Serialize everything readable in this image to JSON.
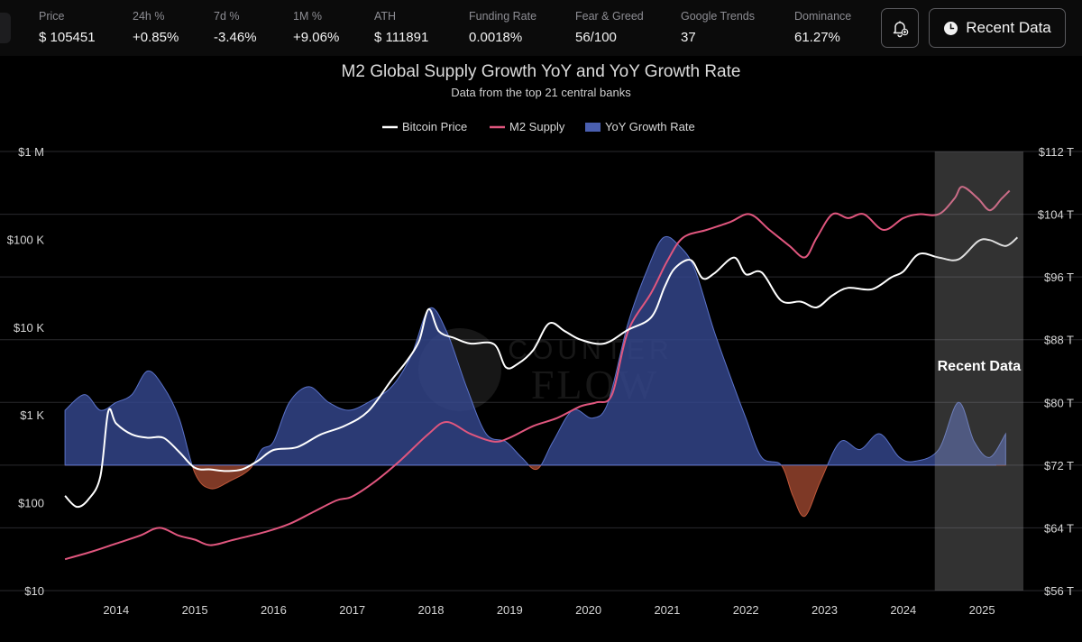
{
  "stats": [
    {
      "label": "Price",
      "value": "$ 105451"
    },
    {
      "label": "24h %",
      "value": "+0.85%"
    },
    {
      "label": "7d %",
      "value": "-3.46%"
    },
    {
      "label": "1M %",
      "value": "+9.06%"
    },
    {
      "label": "ATH",
      "value": "$ 111891"
    },
    {
      "label": "Funding Rate",
      "value": "0.0018%"
    },
    {
      "label": "Fear & Greed",
      "value": "56/100"
    },
    {
      "label": "Google Trends",
      "value": "37"
    },
    {
      "label": "Dominance",
      "value": "61.27%"
    }
  ],
  "toolbar": {
    "recent_label": "Recent Data",
    "bell_icon": "bell-plus-icon",
    "clock_icon": "clock-icon"
  },
  "chart_data": {
    "type": "line",
    "title": "M2 Global Supply Growth YoY and YoY Growth Rate",
    "subtitle": "Data from the top 21 central banks",
    "watermark": "COUNTER FLOW",
    "legend": [
      {
        "name": "Bitcoin Price",
        "color": "#ffffff"
      },
      {
        "name": "M2 Supply",
        "color": "#e0567e"
      },
      {
        "name": "YoY Growth Rate",
        "color": "#4a5fb0"
      }
    ],
    "left_ticks": [
      "$1 M",
      "$100 K",
      "$10 K",
      "$1 K",
      "$100",
      "$10"
    ],
    "right_ticks": [
      "$112 T",
      "$104 T",
      "$96 T",
      "$88 T",
      "$80 T",
      "$72 T",
      "$64 T",
      "$56 T"
    ],
    "x_ticks": [
      "2014",
      "2015",
      "2016",
      "2017",
      "2018",
      "2019",
      "2020",
      "2021",
      "2022",
      "2023",
      "2024",
      "2025"
    ],
    "left_scale": "log",
    "left_range": [
      10,
      1000000
    ],
    "right_range": [
      56,
      112
    ],
    "recent_region": {
      "label": "Recent Data",
      "from": 2024.4,
      "to": 2025.5
    },
    "series": [
      {
        "name": "Bitcoin Price",
        "axis": "left",
        "points": [
          [
            2013.35,
            120
          ],
          [
            2013.5,
            90
          ],
          [
            2013.65,
            110
          ],
          [
            2013.8,
            200
          ],
          [
            2013.9,
            1100
          ],
          [
            2014.0,
            800
          ],
          [
            2014.2,
            600
          ],
          [
            2014.4,
            550
          ],
          [
            2014.6,
            550
          ],
          [
            2014.8,
            380
          ],
          [
            2015.0,
            250
          ],
          [
            2015.2,
            240
          ],
          [
            2015.4,
            230
          ],
          [
            2015.6,
            240
          ],
          [
            2015.8,
            300
          ],
          [
            2016.0,
            400
          ],
          [
            2016.3,
            430
          ],
          [
            2016.6,
            600
          ],
          [
            2016.9,
            750
          ],
          [
            2017.2,
            1100
          ],
          [
            2017.5,
            2500
          ],
          [
            2017.7,
            4200
          ],
          [
            2017.85,
            7000
          ],
          [
            2017.97,
            16000
          ],
          [
            2018.1,
            9000
          ],
          [
            2018.3,
            7500
          ],
          [
            2018.5,
            6500
          ],
          [
            2018.8,
            6400
          ],
          [
            2018.95,
            3500
          ],
          [
            2019.1,
            3800
          ],
          [
            2019.3,
            5500
          ],
          [
            2019.5,
            11000
          ],
          [
            2019.7,
            9000
          ],
          [
            2019.9,
            7200
          ],
          [
            2020.2,
            6500
          ],
          [
            2020.5,
            9300
          ],
          [
            2020.8,
            13000
          ],
          [
            2020.97,
            29000
          ],
          [
            2021.1,
            47000
          ],
          [
            2021.3,
            58000
          ],
          [
            2021.45,
            36000
          ],
          [
            2021.6,
            41000
          ],
          [
            2021.85,
            62000
          ],
          [
            2022.0,
            40000
          ],
          [
            2022.2,
            42000
          ],
          [
            2022.45,
            20000
          ],
          [
            2022.7,
            19500
          ],
          [
            2022.9,
            16800
          ],
          [
            2023.1,
            23000
          ],
          [
            2023.3,
            28000
          ],
          [
            2023.6,
            27000
          ],
          [
            2023.85,
            37000
          ],
          [
            2024.0,
            43000
          ],
          [
            2024.2,
            68000
          ],
          [
            2024.45,
            62000
          ],
          [
            2024.7,
            59000
          ],
          [
            2024.95,
            95000
          ],
          [
            2025.1,
            98000
          ],
          [
            2025.3,
            84000
          ],
          [
            2025.45,
            105000
          ]
        ]
      },
      {
        "name": "M2 Supply",
        "axis": "right",
        "points": [
          [
            2013.35,
            60
          ],
          [
            2013.7,
            61
          ],
          [
            2014.0,
            62
          ],
          [
            2014.3,
            63
          ],
          [
            2014.55,
            64
          ],
          [
            2014.8,
            63
          ],
          [
            2015.0,
            62.5
          ],
          [
            2015.2,
            61.8
          ],
          [
            2015.5,
            62.5
          ],
          [
            2015.9,
            63.5
          ],
          [
            2016.2,
            64.5
          ],
          [
            2016.5,
            66
          ],
          [
            2016.8,
            67.5
          ],
          [
            2017.0,
            68
          ],
          [
            2017.3,
            70
          ],
          [
            2017.6,
            72.5
          ],
          [
            2017.97,
            76
          ],
          [
            2018.2,
            77.5
          ],
          [
            2018.5,
            76
          ],
          [
            2018.8,
            75
          ],
          [
            2019.0,
            75.5
          ],
          [
            2019.3,
            77
          ],
          [
            2019.6,
            78
          ],
          [
            2019.9,
            79.5
          ],
          [
            2020.1,
            80
          ],
          [
            2020.3,
            81
          ],
          [
            2020.5,
            89
          ],
          [
            2020.8,
            94
          ],
          [
            2021.0,
            98
          ],
          [
            2021.2,
            101
          ],
          [
            2021.5,
            102
          ],
          [
            2021.8,
            103
          ],
          [
            2022.05,
            104
          ],
          [
            2022.3,
            102
          ],
          [
            2022.55,
            100
          ],
          [
            2022.75,
            98.5
          ],
          [
            2022.9,
            101
          ],
          [
            2023.1,
            104
          ],
          [
            2023.3,
            103.5
          ],
          [
            2023.5,
            104
          ],
          [
            2023.75,
            102
          ],
          [
            2024.0,
            103.5
          ],
          [
            2024.2,
            104
          ],
          [
            2024.45,
            104
          ],
          [
            2024.65,
            106
          ],
          [
            2024.75,
            107.5
          ],
          [
            2024.95,
            106
          ],
          [
            2025.1,
            104.5
          ],
          [
            2025.25,
            106
          ],
          [
            2025.35,
            107
          ]
        ]
      },
      {
        "name": "YoY Growth Rate",
        "axis": "right",
        "baseline": 72,
        "points": [
          [
            2013.35,
            79
          ],
          [
            2013.6,
            81
          ],
          [
            2013.8,
            79
          ],
          [
            2014.0,
            80
          ],
          [
            2014.2,
            81
          ],
          [
            2014.4,
            84
          ],
          [
            2014.6,
            82
          ],
          [
            2014.8,
            78
          ],
          [
            2015.0,
            71
          ],
          [
            2015.2,
            69
          ],
          [
            2015.45,
            70
          ],
          [
            2015.7,
            71.5
          ],
          [
            2015.85,
            74
          ],
          [
            2016.0,
            75
          ],
          [
            2016.2,
            80
          ],
          [
            2016.45,
            82
          ],
          [
            2016.7,
            80
          ],
          [
            2016.95,
            79
          ],
          [
            2017.2,
            80
          ],
          [
            2017.5,
            82
          ],
          [
            2017.75,
            86
          ],
          [
            2017.98,
            92
          ],
          [
            2018.2,
            89
          ],
          [
            2018.45,
            82
          ],
          [
            2018.7,
            76
          ],
          [
            2018.95,
            75
          ],
          [
            2019.15,
            73
          ],
          [
            2019.35,
            71.5
          ],
          [
            2019.55,
            75
          ],
          [
            2019.8,
            79
          ],
          [
            2020.05,
            78
          ],
          [
            2020.25,
            80
          ],
          [
            2020.5,
            90
          ],
          [
            2020.75,
            97
          ],
          [
            2020.95,
            101
          ],
          [
            2021.15,
            100
          ],
          [
            2021.35,
            97
          ],
          [
            2021.6,
            89
          ],
          [
            2021.85,
            82
          ],
          [
            2022.0,
            78
          ],
          [
            2022.2,
            73
          ],
          [
            2022.45,
            72
          ],
          [
            2022.6,
            68
          ],
          [
            2022.75,
            65.5
          ],
          [
            2022.95,
            70
          ],
          [
            2023.2,
            75
          ],
          [
            2023.45,
            74
          ],
          [
            2023.7,
            76
          ],
          [
            2023.95,
            73
          ],
          [
            2024.15,
            72.5
          ],
          [
            2024.45,
            74
          ],
          [
            2024.7,
            80
          ],
          [
            2024.9,
            75
          ],
          [
            2025.1,
            73
          ],
          [
            2025.3,
            76
          ]
        ]
      }
    ]
  }
}
